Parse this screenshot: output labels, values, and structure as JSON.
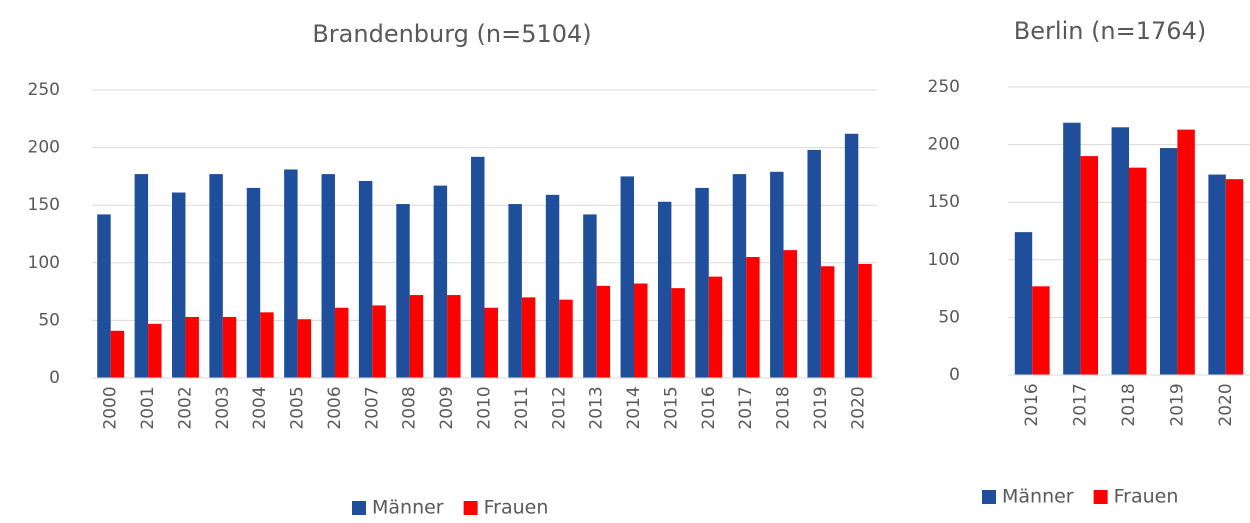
{
  "chart_data": [
    {
      "type": "bar",
      "title": "Brandenburg (n=5104)",
      "categories": [
        "2000",
        "2001",
        "2002",
        "2003",
        "2004",
        "2005",
        "2006",
        "2007",
        "2008",
        "2009",
        "2010",
        "2011",
        "2012",
        "2013",
        "2014",
        "2015",
        "2016",
        "2017",
        "2018",
        "2019",
        "2020"
      ],
      "series": [
        {
          "name": "Männer",
          "color": "#1f4e9a",
          "values": [
            142,
            177,
            161,
            177,
            165,
            181,
            177,
            171,
            151,
            167,
            192,
            151,
            159,
            142,
            175,
            153,
            165,
            177,
            179,
            198,
            212
          ]
        },
        {
          "name": "Frauen",
          "color": "#ff0000",
          "values": [
            41,
            47,
            53,
            53,
            57,
            51,
            61,
            63,
            72,
            72,
            61,
            70,
            68,
            80,
            82,
            78,
            88,
            105,
            111,
            97,
            99
          ]
        }
      ],
      "ylim": [
        0,
        250
      ],
      "yticks": [
        0,
        50,
        100,
        150,
        200,
        250
      ],
      "grid": true,
      "legend": "bottom"
    },
    {
      "type": "bar",
      "title": "Berlin (n=1764)",
      "categories": [
        "2016",
        "2017",
        "2018",
        "2019",
        "2020"
      ],
      "series": [
        {
          "name": "Männer",
          "color": "#1f4e9a",
          "values": [
            124,
            219,
            215,
            197,
            174
          ]
        },
        {
          "name": "Frauen",
          "color": "#ff0000",
          "values": [
            77,
            190,
            180,
            213,
            170
          ]
        }
      ],
      "ylim": [
        0,
        250
      ],
      "yticks": [
        0,
        50,
        100,
        150,
        200,
        250
      ],
      "grid": true,
      "legend": "bottom"
    }
  ]
}
